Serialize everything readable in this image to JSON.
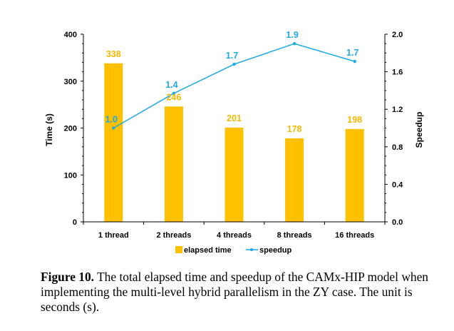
{
  "chart_data": {
    "type": "bar",
    "categories": [
      "1 thread",
      "2 threads",
      "4 threads",
      "8 threads",
      "16 threads"
    ],
    "series": [
      {
        "name": "elapsed time",
        "type": "bar",
        "axis": "left",
        "values": [
          338,
          246,
          201,
          178,
          198
        ],
        "labels": [
          "338",
          "246",
          "201",
          "178",
          "198"
        ]
      },
      {
        "name": "speedup",
        "type": "line",
        "axis": "right",
        "values": [
          1.0,
          1.37,
          1.68,
          1.9,
          1.71
        ],
        "labels": [
          "1.0",
          "1.4",
          "1.7",
          "1.9",
          "1.7"
        ]
      }
    ],
    "ylabel": "Time (s)",
    "y2label": "Speedup",
    "ylim": [
      0,
      400
    ],
    "y2lim": [
      0,
      2.0
    ],
    "yticks": [
      "0",
      "100",
      "200",
      "300",
      "400"
    ],
    "y2ticks": [
      "0.0",
      "0.4",
      "0.8",
      "1.2",
      "1.6",
      "2.0"
    ],
    "legend_position": "bottom",
    "grid": false,
    "colors": {
      "bar": "#FFC000",
      "line": "#1CA9E6",
      "bar_label": "#F5B800",
      "line_label": "#1CA9E6"
    }
  },
  "caption": {
    "label": "Figure 10.",
    "text": " The total elapsed time and speedup of the CAMx-HIP model when implementing the multi-level hybrid parallelism in the ZY case. The unit is seconds (s)."
  }
}
